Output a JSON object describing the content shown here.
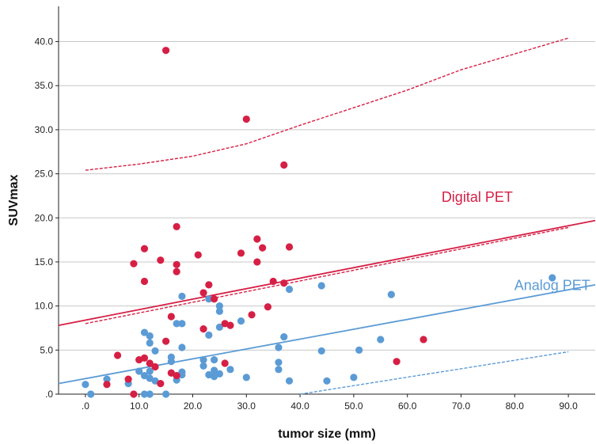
{
  "chart_data": {
    "type": "scatter",
    "xlabel": "tumor size (mm)",
    "ylabel": "SUVmax",
    "xlim": [
      -5,
      95
    ],
    "ylim": [
      0,
      44
    ],
    "x_ticks": [
      0,
      10,
      20,
      30,
      40,
      50,
      60,
      70,
      80,
      90
    ],
    "x_tick_labels": [
      ".0",
      "10.0",
      "20.0",
      "30.0",
      "40.0",
      "50.0",
      "60.0",
      "70.0",
      "80.0",
      "90.0"
    ],
    "y_ticks": [
      0,
      5,
      10,
      15,
      20,
      25,
      30,
      35,
      40
    ],
    "y_tick_labels": [
      ".0",
      "5.0",
      "10.0",
      "15.0",
      "20.0",
      "25.0",
      "30.0",
      "35.0",
      "40.0"
    ],
    "grid": "horizontal",
    "colors": {
      "digital": "#d61f45",
      "analog": "#5b9bd5"
    },
    "annotations": [
      {
        "text": "Digital PET",
        "series": "digital",
        "x": 73,
        "y": 21.8
      },
      {
        "text": "Analog PET",
        "series": "analog",
        "x": 87,
        "y": 11.8
      }
    ],
    "series": [
      {
        "key": "digital",
        "color": "#d61f45",
        "points": [
          [
            15,
            39
          ],
          [
            30,
            31.2
          ],
          [
            37,
            26
          ],
          [
            17,
            19
          ],
          [
            21,
            15.8
          ],
          [
            32,
            17.6
          ],
          [
            11,
            16.5
          ],
          [
            33,
            16.6
          ],
          [
            38,
            16.7
          ],
          [
            9,
            14.8
          ],
          [
            14,
            15.2
          ],
          [
            17,
            14.7
          ],
          [
            29,
            16
          ],
          [
            32,
            15
          ],
          [
            17,
            13.9
          ],
          [
            11,
            12.8
          ],
          [
            23,
            12.4
          ],
          [
            35,
            12.8
          ],
          [
            37,
            12.6
          ],
          [
            24,
            10.8
          ],
          [
            34,
            9.9
          ],
          [
            16,
            8.8
          ],
          [
            22,
            7.4
          ],
          [
            27,
            7.8
          ],
          [
            31,
            9
          ],
          [
            26,
            8
          ],
          [
            6,
            4.4
          ],
          [
            10,
            3.9
          ],
          [
            11,
            4.1
          ],
          [
            12,
            3.5
          ],
          [
            15,
            6
          ],
          [
            13,
            3.1
          ],
          [
            16,
            2.4
          ],
          [
            17,
            2.1
          ],
          [
            26,
            3.5
          ],
          [
            14,
            1.2
          ],
          [
            4,
            1.1
          ],
          [
            8,
            1.7
          ],
          [
            9,
            0
          ],
          [
            22,
            11.5
          ],
          [
            58,
            3.7
          ],
          [
            63,
            6.2
          ]
        ],
        "fit_line": [
          [
            -5,
            7.8
          ],
          [
            95,
            19.7
          ]
        ],
        "ci_lower": [
          [
            0,
            8.0
          ],
          [
            90,
            18.9
          ]
        ],
        "pi_upper": [
          [
            0,
            25.4
          ],
          [
            10,
            26.1
          ],
          [
            20,
            27.0
          ],
          [
            30,
            28.4
          ],
          [
            40,
            30.5
          ],
          [
            50,
            32.5
          ],
          [
            60,
            34.5
          ],
          [
            70,
            36.8
          ],
          [
            80,
            38.6
          ],
          [
            90,
            40.4
          ]
        ]
      },
      {
        "key": "analog",
        "color": "#5b9bd5",
        "points": [
          [
            0,
            1.1
          ],
          [
            1,
            0
          ],
          [
            4,
            1.7
          ],
          [
            8,
            1.2
          ],
          [
            10,
            2.6
          ],
          [
            11,
            7
          ],
          [
            12,
            6.6
          ],
          [
            12,
            5.8
          ],
          [
            13,
            4.9
          ],
          [
            11,
            2.1
          ],
          [
            12,
            1.8
          ],
          [
            12,
            2.6
          ],
          [
            13,
            1.5
          ],
          [
            11,
            0
          ],
          [
            12,
            0
          ],
          [
            15,
            0
          ],
          [
            16,
            3.7
          ],
          [
            16,
            4.2
          ],
          [
            16,
            2.4
          ],
          [
            17,
            1.6
          ],
          [
            17,
            8
          ],
          [
            18,
            8
          ],
          [
            18,
            11.1
          ],
          [
            18,
            5.3
          ],
          [
            18,
            2.5
          ],
          [
            18,
            2.2
          ],
          [
            22,
            3.9
          ],
          [
            22,
            3.2
          ],
          [
            23,
            6.7
          ],
          [
            23,
            2.2
          ],
          [
            24,
            3.9
          ],
          [
            24,
            2.7
          ],
          [
            24,
            2
          ],
          [
            23,
            10.8
          ],
          [
            25,
            10
          ],
          [
            25,
            9.4
          ],
          [
            25,
            7.6
          ],
          [
            25,
            2.3
          ],
          [
            27,
            2.8
          ],
          [
            29,
            8.3
          ],
          [
            30,
            1.9
          ],
          [
            36,
            5.3
          ],
          [
            36,
            3.6
          ],
          [
            36,
            2.8
          ],
          [
            37,
            6.5
          ],
          [
            38,
            1.5
          ],
          [
            38,
            11.9
          ],
          [
            44,
            12.3
          ],
          [
            44,
            4.9
          ],
          [
            45,
            1.5
          ],
          [
            50,
            1.9
          ],
          [
            51,
            5
          ],
          [
            55,
            6.2
          ],
          [
            57,
            11.3
          ],
          [
            87,
            13.2
          ]
        ],
        "fit_line": [
          [
            -5,
            1.2
          ],
          [
            95,
            12.4
          ]
        ],
        "ci_lower": [
          [
            40,
            0
          ],
          [
            90,
            4.8
          ]
        ]
      }
    ]
  }
}
